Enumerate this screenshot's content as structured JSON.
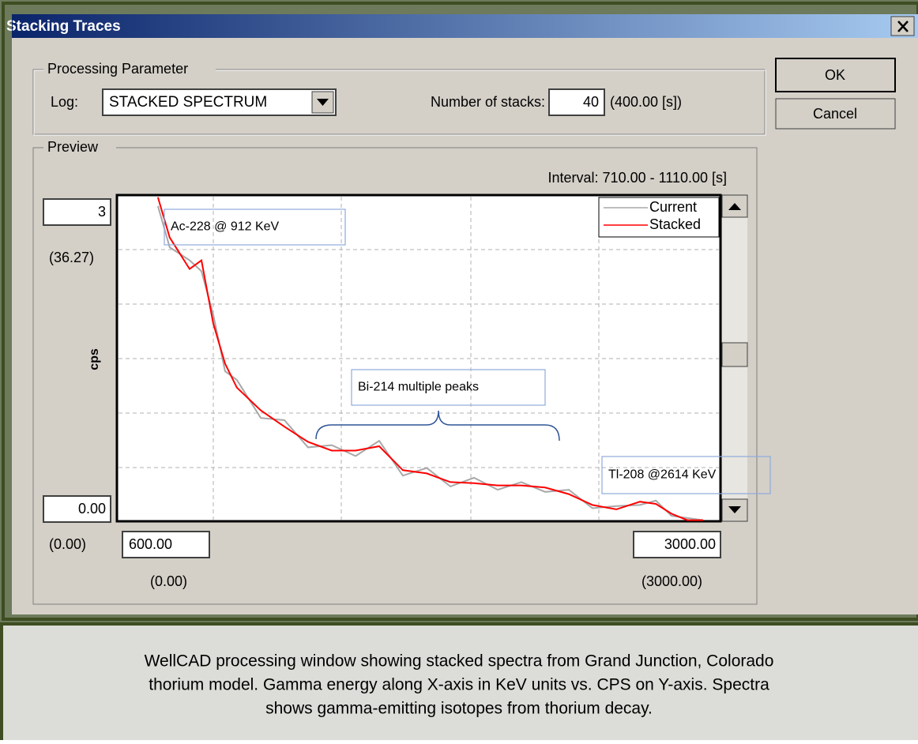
{
  "window": {
    "title": "Stacking Traces"
  },
  "processing_parameter": {
    "legend": "Processing Parameter",
    "log_label": "Log:",
    "log_value": "STACKED SPECTRUM",
    "stacks_label": "Number of stacks:",
    "stacks_value": 40,
    "stacks_duration": "(400.00 [s])"
  },
  "buttons": {
    "ok": "OK",
    "cancel": "Cancel"
  },
  "preview": {
    "legend": "Preview",
    "interval": "Interval: 710.00 - 1110.00 [s]",
    "y_max_scaled": "(36.27)",
    "y_min_scaled": "(0.00)",
    "x_min_scaled": "(0.00)",
    "x_max_scaled": "(3000.00)"
  },
  "chart_data": {
    "type": "line",
    "y_label": "cps",
    "x": [
      763,
      810,
      889,
      936,
      983,
      1030,
      1077,
      1172,
      1266,
      1360,
      1454,
      1549,
      1643,
      1737,
      1832,
      1926,
      2020,
      2114,
      2208,
      2303,
      2397,
      2491,
      2586,
      2680,
      2743,
      2805,
      2868,
      2931
    ],
    "series": [
      {
        "name": "Current",
        "color": "#a8a8a8",
        "values": [
          2.9,
          2.52,
          2.4,
          2.3,
          1.9,
          1.38,
          1.3,
          0.95,
          0.93,
          0.68,
          0.7,
          0.6,
          0.74,
          0.42,
          0.49,
          0.32,
          0.4,
          0.29,
          0.36,
          0.27,
          0.29,
          0.12,
          0.14,
          0.15,
          0.19,
          0.05,
          0.03,
          0.01
        ]
      },
      {
        "name": "Stacked",
        "color": "#ff0000",
        "values": [
          2.98,
          2.61,
          2.32,
          2.4,
          1.82,
          1.45,
          1.23,
          1.02,
          0.87,
          0.73,
          0.65,
          0.65,
          0.69,
          0.47,
          0.44,
          0.36,
          0.35,
          0.33,
          0.33,
          0.31,
          0.25,
          0.15,
          0.11,
          0.18,
          0.16,
          0.07,
          0.01,
          0.01
        ]
      }
    ],
    "xlim": [
      600,
      3000
    ],
    "ylim": [
      0,
      3
    ],
    "xticks": [
      {
        "value": 600,
        "label": "600.00"
      },
      {
        "value": 3000,
        "label": "3000.00"
      }
    ],
    "yticks": [
      {
        "value": 0,
        "label": "0.00"
      },
      3
    ],
    "grid": true,
    "legend": "upper right",
    "annotations": [
      "Ac-228 @ 912 KeV",
      "Bi-214 multiple peaks",
      "Tl-208 @2614 KeV"
    ]
  },
  "caption": [
    "WellCAD processing window showing stacked spectra from Grand Junction, Colorado",
    "thorium model. Gamma energy along X-axis in KeV units vs. CPS on Y-axis.  Spectra",
    "shows gamma-emitting isotopes from thorium decay."
  ]
}
